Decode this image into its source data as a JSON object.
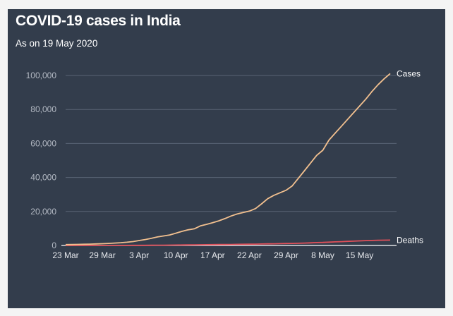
{
  "chart_data": {
    "type": "line",
    "title": "COVID-19 cases in India",
    "subtitle": "As on 19 May 2020",
    "xlabel": "",
    "ylabel": "",
    "ylim": [
      0,
      100000
    ],
    "y_ticks": [
      0,
      20000,
      40000,
      60000,
      80000,
      100000
    ],
    "y_tick_labels": [
      "0",
      "20,000",
      "40,000",
      "60,000",
      "80,000",
      "100,000"
    ],
    "x_tick_labels": [
      "23 Mar",
      "29 Mar",
      "3 Apr",
      "10 Apr",
      "17 Apr",
      "22 Apr",
      "29 Apr",
      "8 May",
      "15 May"
    ],
    "grid": true,
    "series": [
      {
        "name": "Cases",
        "color": "#f2c08f",
        "values": [
          500,
          550,
          620,
          700,
          800,
          900,
          1050,
          1200,
          1400,
          1600,
          1900,
          2300,
          2900,
          3500,
          4200,
          5000,
          5600,
          6200,
          7200,
          8300,
          9200,
          9800,
          11500,
          12400,
          13400,
          14500,
          15800,
          17300,
          18500,
          19400,
          20200,
          21700,
          24500,
          27500,
          29500,
          31000,
          32500,
          35000,
          39500,
          44000,
          48500,
          53000,
          56000,
          62000,
          66000,
          70000,
          74000,
          78000,
          82000,
          86000,
          90500,
          94500,
          98000,
          101100
        ]
      },
      {
        "name": "Deaths",
        "color": "#e0505a",
        "values": [
          10,
          12,
          14,
          17,
          20,
          25,
          30,
          35,
          40,
          50,
          60,
          70,
          80,
          100,
          120,
          150,
          180,
          210,
          240,
          280,
          320,
          360,
          400,
          440,
          480,
          520,
          560,
          600,
          650,
          700,
          750,
          800,
          870,
          940,
          1000,
          1080,
          1150,
          1220,
          1300,
          1400,
          1550,
          1700,
          1800,
          1950,
          2100,
          2250,
          2400,
          2550,
          2700,
          2850,
          2950,
          3050,
          3100,
          3163
        ]
      }
    ]
  }
}
